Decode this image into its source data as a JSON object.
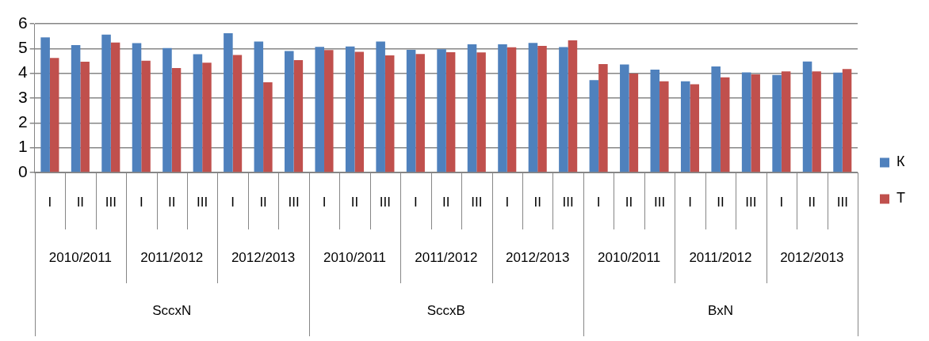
{
  "chart_data": {
    "type": "bar",
    "categories": [
      "I",
      "II",
      "III",
      "I",
      "II",
      "III",
      "I",
      "II",
      "III",
      "I",
      "II",
      "III",
      "I",
      "II",
      "III",
      "I",
      "II",
      "III",
      "I",
      "II",
      "III",
      "I",
      "II",
      "III",
      "I",
      "II",
      "III"
    ],
    "series": [
      {
        "name": "К",
        "color": "#4f81bd",
        "values": [
          5.45,
          5.14,
          5.56,
          5.22,
          5.02,
          4.77,
          5.62,
          5.28,
          4.9,
          5.07,
          5.08,
          5.28,
          4.95,
          4.97,
          5.17,
          5.17,
          5.23,
          5.06,
          3.73,
          4.36,
          4.15,
          3.68,
          4.28,
          4.04,
          3.93,
          4.48,
          4.03
        ]
      },
      {
        "name": "Т",
        "color": "#c0504d",
        "values": [
          4.62,
          4.47,
          5.24,
          4.51,
          4.21,
          4.43,
          4.74,
          3.64,
          4.53,
          4.94,
          4.87,
          4.72,
          4.78,
          4.85,
          4.84,
          5.05,
          5.11,
          5.33,
          4.37,
          3.99,
          3.68,
          3.56,
          3.84,
          3.96,
          4.08,
          4.08,
          4.17
        ]
      }
    ],
    "annotations": [
      "2010/2011",
      "2011/2012",
      "2012/2013",
      "2010/2011",
      "2011/2012",
      "2012/2013",
      "2010/2011",
      "2011/2012",
      "2012/2013",
      "SccxN",
      "SccxB",
      "BxN"
    ],
    "ylim": [
      0,
      6
    ],
    "yticks": [
      0,
      1,
      2,
      3,
      4,
      5,
      6
    ],
    "grid": "y",
    "legend": "right"
  }
}
